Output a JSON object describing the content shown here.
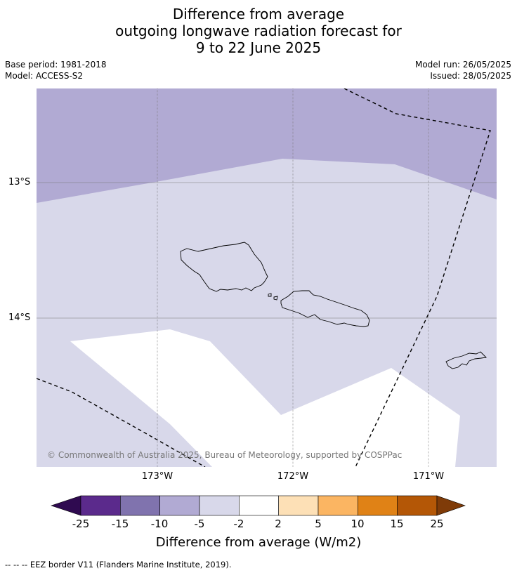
{
  "title": {
    "line1": "Difference from average",
    "line2": "outgoing longwave radiation forecast for",
    "line3": "9 to 22 June 2025"
  },
  "meta": {
    "base_period": "Base period: 1981-2018",
    "model": "Model: ACCESS-S2",
    "model_run": "Model run: 26/05/2025",
    "issued": "Issued: 28/05/2025"
  },
  "map": {
    "lat_labels": [
      "13°S",
      "14°S"
    ],
    "lon_labels": [
      "173°W",
      "172°W",
      "171°W"
    ],
    "copyright": "© Commonwealth of Australia 2025, Bureau of Meteorology, supported by COSPPac"
  },
  "colorbar": {
    "title": "Difference from average (W/m2)",
    "ticks": [
      "-25",
      "-15",
      "-10",
      "-5",
      "-2",
      "2",
      "5",
      "10",
      "15",
      "25"
    ],
    "colors": [
      "#5b2a8c",
      "#8073ae",
      "#b1aad3",
      "#d8d8ea",
      "#ffffff",
      "#fde0b6",
      "#fbb562",
      "#e08216",
      "#b45706"
    ],
    "under_color": "#2f0a50",
    "over_color": "#7f3b08"
  },
  "footer": {
    "eez_legend": "--  --  -- EEZ border V11 (Flanders Marine Institute, 2019)."
  }
}
